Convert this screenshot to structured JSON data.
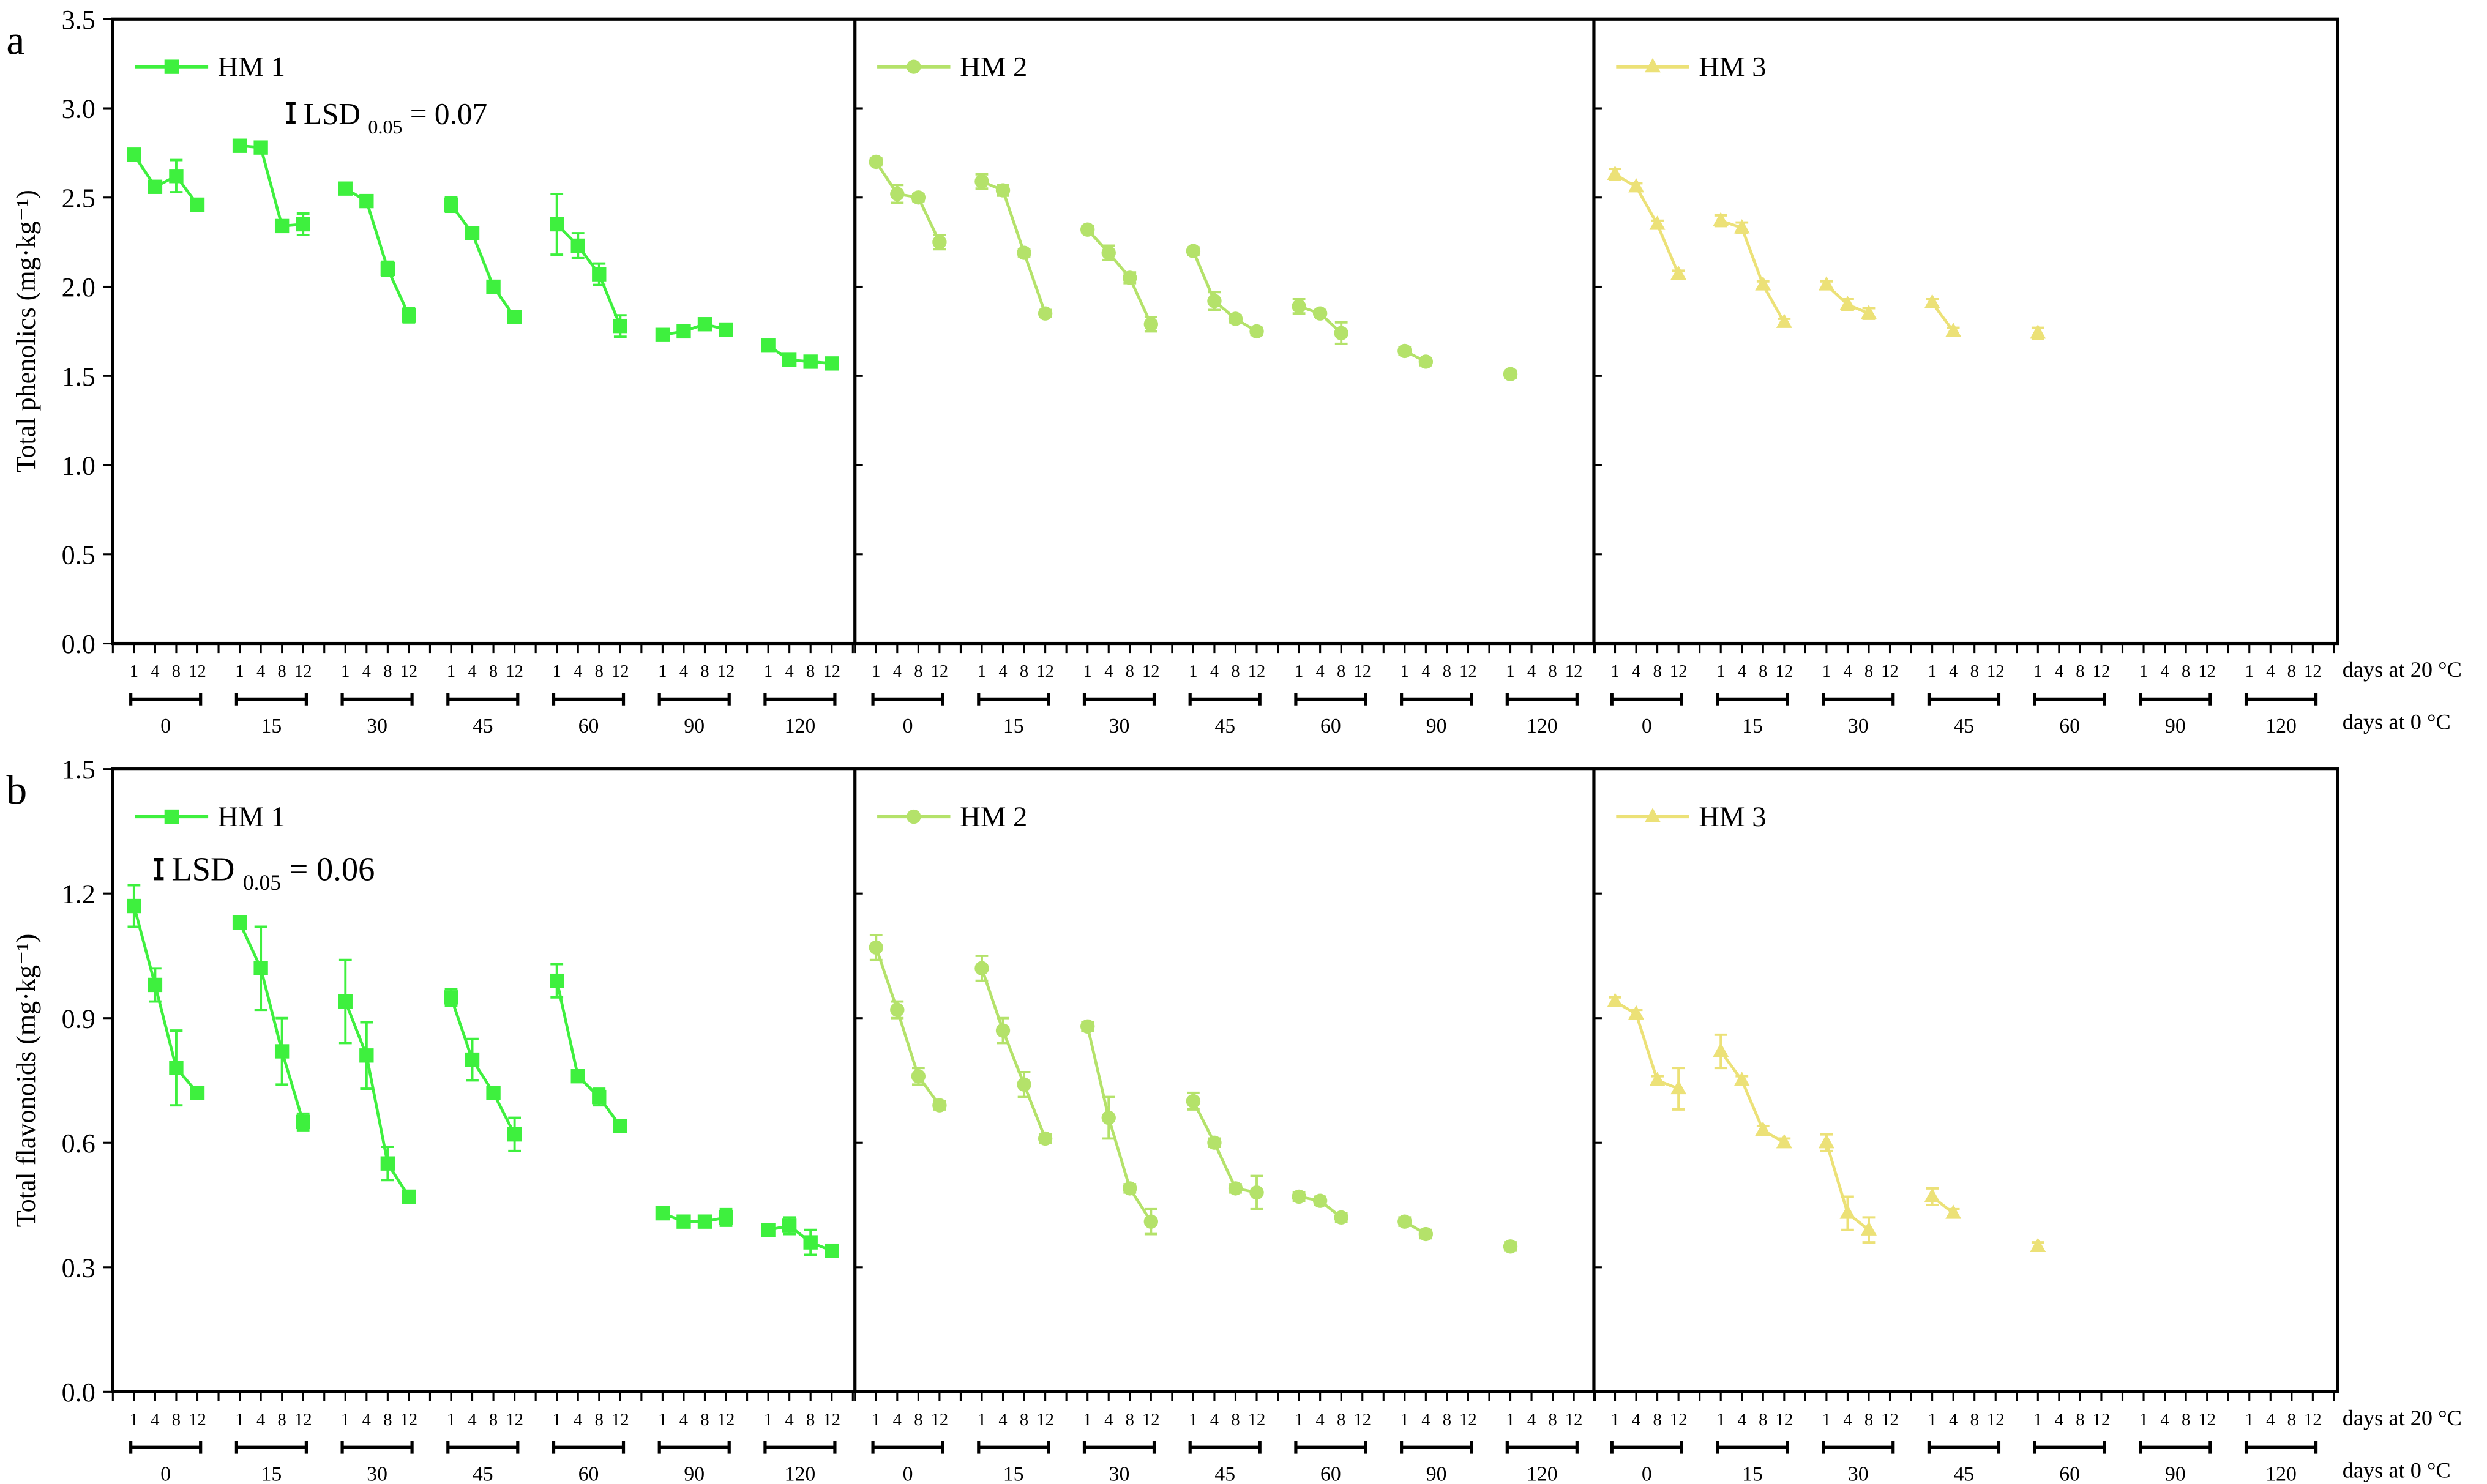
{
  "x_axis": {
    "inner_label": "days at 20 °C",
    "outer_label": "days at 0 °C",
    "inner_ticks": [
      "1",
      "4",
      "8",
      "12"
    ],
    "outer_groups": [
      "0",
      "15",
      "30",
      "45",
      "60",
      "90",
      "120"
    ]
  },
  "colors": {
    "HM 1": "#3ef03e",
    "HM 2": "#b4e26a",
    "HM 3": "#ece177"
  },
  "markers": {
    "HM 1": "square",
    "HM 2": "circle",
    "HM 3": "triangle"
  },
  "chart_data": [
    {
      "type": "line",
      "panel_letter": "a",
      "ylabel": "Total phenolics (mg·kg⁻¹)",
      "ylim": [
        0,
        3.5
      ],
      "yticks": [
        "0.0",
        "0.5",
        "1.0",
        "1.5",
        "2.0",
        "2.5",
        "3.0",
        "3.5"
      ],
      "annotation": {
        "prefix": "LSD",
        "sub": "0.05",
        "text": "= 0.07"
      },
      "grid": false,
      "legend_placement": "top-left",
      "series": [
        {
          "name": "HM 1",
          "values": [
            [
              2.74,
              2.56,
              2.62,
              2.46
            ],
            [
              2.79,
              2.78,
              2.34,
              2.35
            ],
            [
              2.55,
              2.48,
              2.1,
              1.84
            ],
            [
              2.46,
              2.3,
              2.0,
              1.83
            ],
            [
              2.35,
              2.23,
              2.07,
              1.78
            ],
            [
              1.73,
              1.75,
              1.79,
              1.76
            ],
            [
              1.67,
              1.59,
              1.58,
              1.57
            ]
          ],
          "errors": [
            [
              0.02,
              0.02,
              0.09,
              0.02
            ],
            [
              0.02,
              0.03,
              0.02,
              0.06
            ],
            [
              0.03,
              0.02,
              0.04,
              0.04
            ],
            [
              0.04,
              0.02,
              0.02,
              0.02
            ],
            [
              0.17,
              0.07,
              0.06,
              0.06
            ],
            [
              0.02,
              0.02,
              0.02,
              0.02
            ],
            [
              0.02,
              0.02,
              0.02,
              0.02
            ]
          ]
        },
        {
          "name": "HM 2",
          "values": [
            [
              2.7,
              2.52,
              2.5,
              2.25
            ],
            [
              2.59,
              2.54,
              2.19,
              1.85
            ],
            [
              2.32,
              2.19,
              2.05,
              1.79
            ],
            [
              2.2,
              1.92,
              1.82,
              1.75
            ],
            [
              1.89,
              1.85,
              1.74,
              null
            ],
            [
              1.64,
              1.58,
              null,
              null
            ],
            [
              1.51,
              null,
              null,
              null
            ]
          ],
          "errors": [
            [
              0.02,
              0.05,
              0.02,
              0.04
            ],
            [
              0.04,
              0.03,
              0.02,
              0.02
            ],
            [
              0.02,
              0.04,
              0.03,
              0.04
            ],
            [
              0.02,
              0.05,
              0.02,
              0.02
            ],
            [
              0.04,
              0.02,
              0.06,
              null
            ],
            [
              0.02,
              0.02,
              null,
              null
            ],
            [
              0.02,
              null,
              null,
              null
            ]
          ]
        },
        {
          "name": "HM 3",
          "values": [
            [
              2.63,
              2.56,
              2.35,
              2.07
            ],
            [
              2.37,
              2.33,
              2.01,
              1.8
            ],
            [
              2.01,
              1.9,
              1.85,
              null
            ],
            [
              1.91,
              1.75,
              null,
              null
            ],
            [
              1.74,
              null,
              null,
              null
            ],
            [
              null,
              null,
              null,
              null
            ],
            [
              null,
              null,
              null,
              null
            ]
          ],
          "errors": [
            [
              0.03,
              0.02,
              0.02,
              0.02
            ],
            [
              0.03,
              0.03,
              0.02,
              0.02
            ],
            [
              0.02,
              0.03,
              0.03,
              null
            ],
            [
              0.02,
              0.02,
              null,
              null
            ],
            [
              0.03,
              null,
              null,
              null
            ],
            [
              null,
              null,
              null,
              null
            ],
            [
              null,
              null,
              null,
              null
            ]
          ]
        }
      ]
    },
    {
      "type": "line",
      "panel_letter": "b",
      "ylabel": "Total flavonoids (mg·kg⁻¹)",
      "ylim": [
        0,
        1.5
      ],
      "yticks": [
        "0.0",
        "0.3",
        "0.6",
        "0.9",
        "1.2",
        "1.5"
      ],
      "annotation": {
        "prefix": "LSD",
        "sub": "0.05",
        "text": "= 0.06"
      },
      "grid": false,
      "legend_placement": "top-left",
      "series": [
        {
          "name": "HM 1",
          "values": [
            [
              1.17,
              0.98,
              0.78,
              0.72
            ],
            [
              1.13,
              1.02,
              0.82,
              0.65
            ],
            [
              0.94,
              0.81,
              0.55,
              0.47
            ],
            [
              0.95,
              0.8,
              0.72,
              0.62
            ],
            [
              0.99,
              0.76,
              0.71,
              0.64
            ],
            [
              0.43,
              0.41,
              0.41,
              0.42
            ],
            [
              0.39,
              0.4,
              0.36,
              0.34
            ]
          ],
          "errors": [
            [
              0.05,
              0.04,
              0.09,
              0.01
            ],
            [
              0.01,
              0.1,
              0.08,
              0.02
            ],
            [
              0.1,
              0.08,
              0.04,
              0.01
            ],
            [
              0.02,
              0.05,
              0.01,
              0.04
            ],
            [
              0.04,
              0.01,
              0.02,
              0.01
            ],
            [
              0.01,
              0.01,
              0.01,
              0.02
            ],
            [
              0.01,
              0.02,
              0.03,
              0.01
            ]
          ]
        },
        {
          "name": "HM 2",
          "values": [
            [
              1.07,
              0.92,
              0.76,
              0.69
            ],
            [
              1.02,
              0.87,
              0.74,
              0.61
            ],
            [
              0.88,
              0.66,
              0.49,
              0.41
            ],
            [
              0.7,
              0.6,
              0.49,
              0.48
            ],
            [
              0.47,
              0.46,
              0.42,
              null
            ],
            [
              0.41,
              0.38,
              null,
              null
            ],
            [
              0.35,
              null,
              null,
              null
            ]
          ],
          "errors": [
            [
              0.03,
              0.02,
              0.02,
              0.01
            ],
            [
              0.03,
              0.03,
              0.03,
              0.01
            ],
            [
              0.01,
              0.05,
              0.01,
              0.03
            ],
            [
              0.02,
              0.01,
              0.01,
              0.04
            ],
            [
              0.01,
              0.01,
              0.01,
              null
            ],
            [
              0.01,
              0.01,
              null,
              null
            ],
            [
              0.01,
              null,
              null,
              null
            ]
          ]
        },
        {
          "name": "HM 3",
          "values": [
            [
              0.94,
              0.91,
              0.75,
              0.73
            ],
            [
              0.82,
              0.75,
              0.63,
              0.6
            ],
            [
              0.6,
              0.43,
              0.39,
              null
            ],
            [
              0.47,
              0.43,
              null,
              null
            ],
            [
              0.35,
              null,
              null,
              null
            ],
            [
              null,
              null,
              null,
              null
            ],
            [
              null,
              null,
              null,
              null
            ]
          ],
          "errors": [
            [
              0.01,
              0.01,
              0.01,
              0.05
            ],
            [
              0.04,
              0.01,
              0.01,
              0.01
            ],
            [
              0.02,
              0.04,
              0.03,
              null
            ],
            [
              0.02,
              0.01,
              null,
              null
            ],
            [
              0.01,
              null,
              null,
              null
            ],
            [
              null,
              null,
              null,
              null
            ],
            [
              null,
              null,
              null,
              null
            ]
          ]
        }
      ]
    }
  ]
}
